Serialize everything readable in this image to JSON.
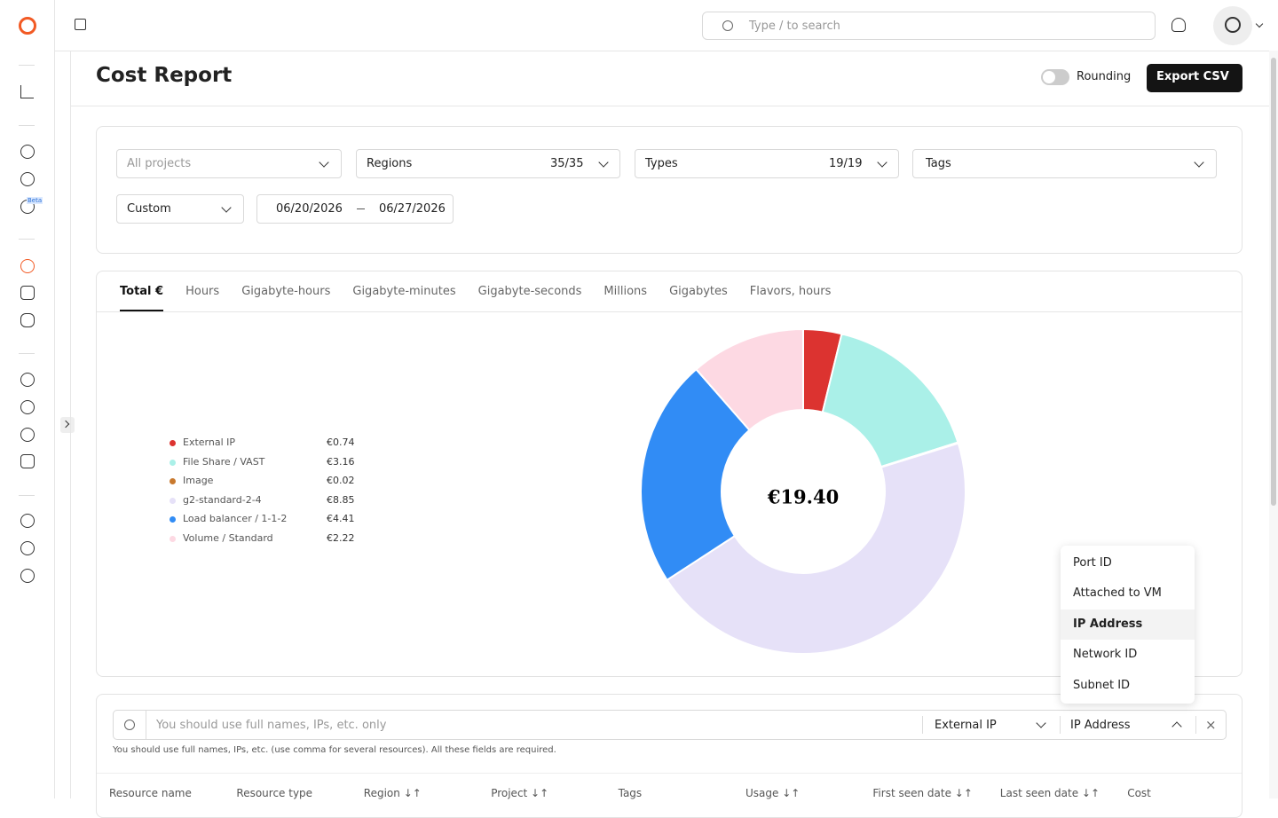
{
  "header": {
    "search_placeholder": "Type / to search"
  },
  "sidebar": {
    "beta_badge": "Beta"
  },
  "page": {
    "title": "Cost Report",
    "rounding_label": "Rounding",
    "export_button": "Export CSV"
  },
  "filters": {
    "projects": "All projects",
    "regions": "Regions",
    "regions_count": "35/35",
    "types": "Types",
    "types_count": "19/19",
    "tags": "Tags",
    "period": "Custom",
    "date_from": "06/20/2026",
    "date_to": "06/27/2026"
  },
  "tabs": {
    "items": [
      "Total €",
      "Hours",
      "Gigabyte-hours",
      "Gigabyte-minutes",
      "Gigabyte-seconds",
      "Millions",
      "Gigabytes",
      "Flavors, hours"
    ],
    "active": 0
  },
  "chart_data": {
    "type": "pie",
    "donut": true,
    "categories": [
      "External IP",
      "File Share / VAST",
      "Image",
      "g2-standard-2-4",
      "Load balancer / 1-1-2",
      "Volume / Standard"
    ],
    "values": [
      0.74,
      3.16,
      0.02,
      8.85,
      4.41,
      2.22
    ],
    "value_labels": [
      "€0.74",
      "€3.16",
      "€0.02",
      "€8.85",
      "€4.41",
      "€2.22"
    ],
    "colors": [
      "#dc3330",
      "#aaf0e8",
      "#c8792e",
      "#e6e1f8",
      "#318cf5",
      "#fdd9e3"
    ],
    "center_label": "€19.40"
  },
  "dropdown": {
    "items": [
      "Port ID",
      "Attached to VM",
      "IP Address",
      "Network ID",
      "Subnet ID"
    ],
    "highlighted": 2
  },
  "search": {
    "placeholder": "You should use full names, IPs, etc. only",
    "resource_type": "External IP",
    "field": "IP Address",
    "hint": "You should use full names, IPs, etc. (use comma for several resources). All these fields are required."
  },
  "table": {
    "columns": [
      "Resource name",
      "Resource type",
      "Region ↓↑",
      "Project ↓↑",
      "Tags",
      "Usage ↓↑",
      "First seen date ↓↑",
      "Last seen date ↓↑",
      "Cost"
    ]
  }
}
